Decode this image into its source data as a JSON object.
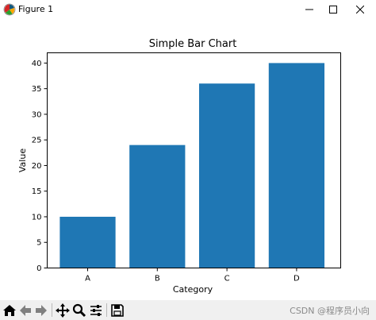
{
  "window": {
    "title": "Figure 1",
    "icon": "matplotlib-icon",
    "controls": [
      "minimize-icon",
      "maximize-icon",
      "close-icon"
    ]
  },
  "toolbar": {
    "items": [
      "home-icon",
      "back-arrow-icon",
      "forward-arrow-icon",
      "pan-icon",
      "zoom-icon",
      "configure-subplots-icon",
      "save-icon"
    ]
  },
  "watermark": "CSDN @程序员小向",
  "chart_data": {
    "type": "bar",
    "title": "Simple Bar Chart",
    "xlabel": "Category",
    "ylabel": "Value",
    "categories": [
      "A",
      "B",
      "C",
      "D"
    ],
    "values": [
      10,
      24,
      36,
      40
    ],
    "ylim": [
      0,
      42
    ],
    "yticks": [
      0,
      5,
      10,
      15,
      20,
      25,
      30,
      35,
      40
    ],
    "bar_color": "#1f77b4",
    "grid": false,
    "legend": "none"
  }
}
